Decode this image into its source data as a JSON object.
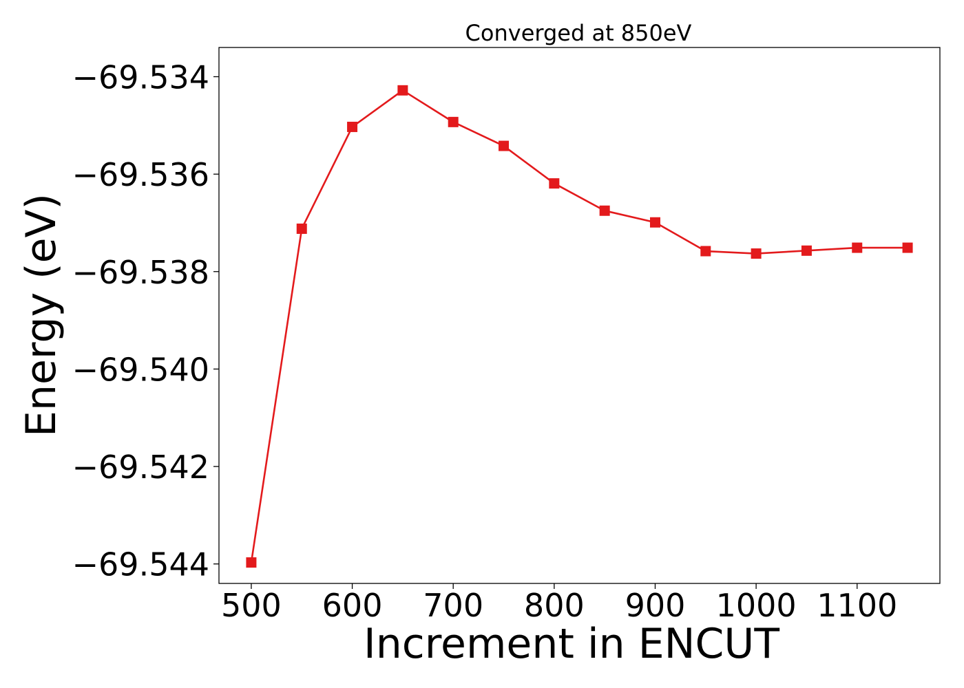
{
  "chart_data": {
    "type": "line",
    "title": "Converged at 850eV",
    "xlabel": "Increment in ENCUT",
    "ylabel": "Energy (eV)",
    "xlim": [
      468,
      1182
    ],
    "ylim": [
      -69.5444,
      -69.5334
    ],
    "xticks": [
      500,
      600,
      700,
      800,
      900,
      1000,
      1100
    ],
    "xtick_labels": [
      "500",
      "600",
      "700",
      "800",
      "900",
      "1000",
      "1100"
    ],
    "yticks": [
      -69.534,
      -69.536,
      -69.538,
      -69.54,
      -69.542,
      -69.544
    ],
    "ytick_labels": [
      "−69.534",
      "−69.536",
      "−69.538",
      "−69.540",
      "−69.542",
      "−69.544"
    ],
    "grid": false,
    "legend": "none",
    "series": [
      {
        "color": "#e31a1c",
        "marker": "square",
        "x": [
          500,
          550,
          600,
          650,
          700,
          750,
          800,
          850,
          900,
          950,
          1000,
          1050,
          1100,
          1150
        ],
        "y": [
          -69.54397,
          -69.53712,
          -69.53503,
          -69.53428,
          -69.53493,
          -69.53542,
          -69.53619,
          -69.53675,
          -69.53699,
          -69.53758,
          -69.53763,
          -69.53757,
          -69.53751,
          -69.53751
        ]
      }
    ]
  }
}
